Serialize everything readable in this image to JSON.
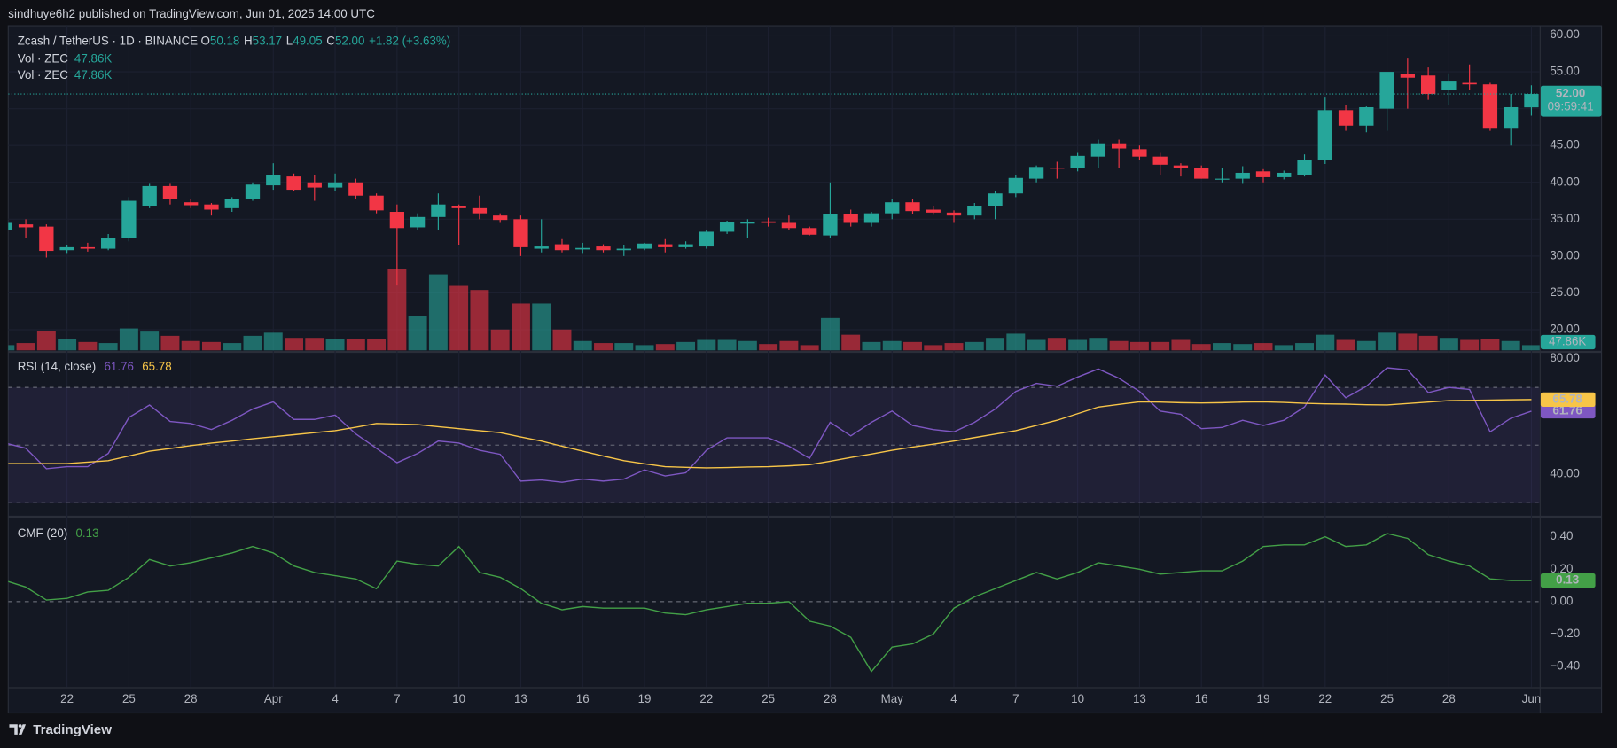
{
  "header": {
    "publisher": "sindhuye6h2 published on TradingView.com, Jun 01, 2025 14:00 UTC"
  },
  "footer": {
    "brand": "TradingView"
  },
  "chart_data": [
    {
      "type": "candlestick",
      "title": "Zcash / TetherUS · 1D · BINANCE",
      "ohlc_labels": [
        "O",
        "H",
        "L",
        "C"
      ],
      "change": "+1.82 (+3.63%)",
      "up_color": "#26a69a",
      "down_color": "#f23645",
      "grid": true,
      "categories": [
        null,
        null,
        null,
        "22",
        null,
        null,
        "25",
        null,
        null,
        "28",
        null,
        null,
        null,
        "Apr",
        null,
        null,
        "4",
        null,
        null,
        "7",
        null,
        null,
        "10",
        null,
        null,
        "13",
        null,
        null,
        "16",
        null,
        null,
        "19",
        null,
        null,
        "22",
        null,
        null,
        "25",
        null,
        null,
        "28",
        null,
        null,
        "May",
        null,
        null,
        "4",
        null,
        null,
        "7",
        null,
        null,
        "10",
        null,
        null,
        "13",
        null,
        null,
        "16",
        null,
        null,
        "19",
        null,
        null,
        "22",
        null,
        null,
        "25",
        null,
        null,
        "28",
        null,
        null,
        null,
        "Jun"
      ],
      "open": [
        33.5,
        34.3,
        34,
        30.8,
        31.2,
        31,
        32.5,
        36.8,
        39.5,
        37.3,
        37,
        36.5,
        37.7,
        39.6,
        40.8,
        40,
        39.3,
        40,
        38.2,
        36,
        33.9,
        35.3,
        36.8,
        36.5,
        35.5,
        35,
        31,
        31.6,
        30.9,
        31.3,
        30.8,
        31,
        31.6,
        31.2,
        31.3,
        33.3,
        34.4,
        34.7,
        34.5,
        33.8,
        32.8,
        35.7,
        34.5,
        35.8,
        37.3,
        36.3,
        35.9,
        35.5,
        36.8,
        38.5,
        40.5,
        42,
        42,
        43.5,
        45.3,
        44.5,
        43.5,
        42.3,
        42,
        40.5,
        40.5,
        41.5,
        40.7,
        41,
        43,
        49.8,
        47.7,
        50,
        54.7,
        54.5,
        52.5,
        53.5,
        53.3,
        47.4,
        50.18
      ],
      "high": [
        35,
        35,
        34.3,
        31.5,
        31.8,
        33,
        38,
        39.8,
        39.8,
        37.8,
        37.2,
        38,
        40,
        42.6,
        41.2,
        41,
        41.2,
        40.5,
        38.5,
        37,
        35.8,
        38.5,
        37,
        38.2,
        35.8,
        35.5,
        35,
        32.3,
        31.8,
        31.6,
        31.5,
        31.8,
        32.3,
        32,
        33.5,
        34.8,
        35,
        35.2,
        35.5,
        34,
        40,
        36.3,
        36,
        37.8,
        37.8,
        36.8,
        36.2,
        37.2,
        38.8,
        41,
        42.3,
        42.8,
        44,
        45.8,
        45.8,
        45,
        44,
        42.6,
        42.3,
        42,
        42.2,
        41.8,
        41.6,
        43.8,
        51.5,
        50.5,
        50.3,
        55,
        56.8,
        55.6,
        54.8,
        56,
        53.5,
        52,
        53.17
      ],
      "low": [
        33,
        32.5,
        29.8,
        30.3,
        30.6,
        30.8,
        32,
        36.5,
        37,
        36.5,
        35.5,
        36,
        37.5,
        39,
        38.8,
        37.5,
        38.8,
        37.8,
        35.8,
        26,
        33.5,
        33.5,
        31.5,
        35,
        34.5,
        30,
        30.5,
        30.5,
        30.3,
        30.5,
        30,
        30.8,
        30.5,
        31,
        31,
        33,
        32.5,
        34,
        33.5,
        32.8,
        32.5,
        34,
        34,
        35,
        35.7,
        35.6,
        34.5,
        35,
        35,
        38,
        40,
        40.5,
        41.5,
        42,
        42,
        43,
        41,
        40.8,
        40.5,
        40,
        39.8,
        40,
        40.4,
        40.8,
        42.5,
        47,
        46.8,
        47,
        50,
        51.2,
        50.5,
        52.5,
        47,
        45,
        49.05
      ],
      "close": [
        34.5,
        33.9,
        30.7,
        31.2,
        31,
        32.5,
        37.5,
        39.5,
        37.8,
        36.9,
        36.3,
        37.7,
        39.7,
        41,
        39,
        39.3,
        40,
        38.2,
        36.2,
        33.8,
        35.3,
        37,
        36.5,
        35.8,
        34.9,
        31.2,
        31.3,
        30.8,
        31.1,
        30.8,
        31,
        31.7,
        31.2,
        31.6,
        33.3,
        34.6,
        34.6,
        34.5,
        33.8,
        32.9,
        35.7,
        34.5,
        35.8,
        37.3,
        36.1,
        35.9,
        35.5,
        36.8,
        38.5,
        40.6,
        42.1,
        41.9,
        43.6,
        45.3,
        44.6,
        43.5,
        42.4,
        42,
        40.5,
        40.5,
        41.3,
        40.7,
        41.3,
        43.1,
        49.8,
        47.7,
        50.2,
        55,
        54.2,
        52,
        53.8,
        53.3,
        47.4,
        50.2,
        52
      ],
      "last_close": {
        "value": 52,
        "label": "52.00"
      },
      "countdown": "09:59:41",
      "volume": {
        "name": "Vol · ZEC",
        "values": [
          48,
          67,
          182,
          106,
          77,
          67,
          202,
          173,
          134,
          86,
          77,
          67,
          134,
          163,
          115,
          115,
          106,
          106,
          106,
          749,
          317,
          701,
          595,
          557,
          192,
          432,
          432,
          192,
          86,
          67,
          67,
          48,
          58,
          77,
          96,
          96,
          86,
          58,
          86,
          48,
          298,
          144,
          77,
          86,
          77,
          48,
          67,
          77,
          115,
          154,
          96,
          115,
          96,
          115,
          86,
          77,
          77,
          96,
          58,
          67,
          58,
          67,
          48,
          67,
          144,
          96,
          86,
          163,
          154,
          134,
          115,
          96,
          106,
          86,
          47.86
        ],
        "last": {
          "value": 47.86,
          "label": "47.86K"
        }
      },
      "ylim": [
        17.2,
        61.26
      ],
      "yticks": [
        {
          "value": 20,
          "label": "20.00"
        },
        {
          "value": 25,
          "label": "25.00"
        },
        {
          "value": 30,
          "label": "30.00"
        },
        {
          "value": 35,
          "label": "35.00"
        },
        {
          "value": 40,
          "label": "40.00"
        },
        {
          "value": 45,
          "label": "45.00"
        },
        {
          "value": 50,
          "label": "50.00"
        },
        {
          "value": 55,
          "label": "55.00"
        },
        {
          "value": 60,
          "label": "60.00"
        }
      ]
    },
    {
      "type": "line",
      "title": "RSI (14, close)",
      "grid": false,
      "series": [
        {
          "color": "#7e57c2",
          "values": [
            50.7,
            48.9,
            41.8,
            42.5,
            42.5,
            47.1,
            59.6,
            63.9,
            58.2,
            57.5,
            55.4,
            58.6,
            62.5,
            65.0,
            58.9,
            58.9,
            60.4,
            53.9,
            48.9,
            43.9,
            47.1,
            51.4,
            50.7,
            48.2,
            46.8,
            37.5,
            37.9,
            37.1,
            38.2,
            37.5,
            38.2,
            41.4,
            39.3,
            40.4,
            48.2,
            52.5,
            52.5,
            52.5,
            49.6,
            45.4,
            57.9,
            53.2,
            57.9,
            61.8,
            56.8,
            55.4,
            54.6,
            57.9,
            62.5,
            68.6,
            71.4,
            70.4,
            73.6,
            76.4,
            73.2,
            68.6,
            61.8,
            60.7,
            55.7,
            56.1,
            58.6,
            56.8,
            58.6,
            63.2,
            74.3,
            66.4,
            70.4,
            76.8,
            76.1,
            68.2,
            70.0,
            69.3,
            54.6,
            59.3,
            61.76
          ]
        },
        {
          "color": "#f7c548",
          "values": [
            43.6,
            43.6,
            43.6,
            43.6,
            44.1,
            44.6,
            46.2,
            47.9,
            48.8,
            49.8,
            50.7,
            51.4,
            52.2,
            52.9,
            53.6,
            54.3,
            55.0,
            56.2,
            57.5,
            57.3,
            57.1,
            56.4,
            55.7,
            55.0,
            54.3,
            52.8,
            51.4,
            49.6,
            47.9,
            46.2,
            44.6,
            43.5,
            42.5,
            42.3,
            42.1,
            42.2,
            42.4,
            42.5,
            42.8,
            43.2,
            44.4,
            45.7,
            46.9,
            48.2,
            49.3,
            50.3,
            51.4,
            52.6,
            53.8,
            55.0,
            56.8,
            58.6,
            60.9,
            63.2,
            64.1,
            65.0,
            64.9,
            64.7,
            64.6,
            64.7,
            64.9,
            65.0,
            64.8,
            64.5,
            64.3,
            64.2,
            64.0,
            63.9,
            64.4,
            64.9,
            65.4,
            65.5,
            65.6,
            65.7,
            65.78
          ]
        }
      ],
      "levels": [
        70,
        50,
        30
      ],
      "band_color": "#7e57c2",
      "ylim": [
        25.7,
        81.8
      ],
      "yticks": [
        {
          "value": 40,
          "label": "40.00"
        },
        {
          "value": 80,
          "label": "80.00"
        }
      ]
    },
    {
      "type": "line",
      "title": "CMF (20)",
      "grid": false,
      "series": [
        {
          "color": "#43a047",
          "values": [
            0.13,
            0.09,
            0.01,
            0.02,
            0.06,
            0.07,
            0.15,
            0.26,
            0.22,
            0.24,
            0.27,
            0.3,
            0.34,
            0.3,
            0.22,
            0.18,
            0.16,
            0.14,
            0.08,
            0.25,
            0.23,
            0.22,
            0.34,
            0.18,
            0.15,
            0.08,
            -0.01,
            -0.05,
            -0.03,
            -0.04,
            -0.04,
            -0.04,
            -0.07,
            -0.08,
            -0.05,
            -0.03,
            -0.01,
            -0.01,
            0.0,
            -0.12,
            -0.15,
            -0.22,
            -0.43,
            -0.28,
            -0.26,
            -0.2,
            -0.04,
            0.03,
            0.08,
            0.13,
            0.18,
            0.14,
            0.18,
            0.24,
            0.22,
            0.2,
            0.17,
            0.18,
            0.19,
            0.19,
            0.25,
            0.34,
            0.35,
            0.35,
            0.4,
            0.34,
            0.35,
            0.42,
            0.39,
            0.29,
            0.25,
            0.22,
            0.14,
            0.13,
            0.13
          ]
        }
      ],
      "levels": [
        0
      ],
      "ylim": [
        -0.527,
        0.514
      ],
      "yticks": [
        {
          "value": -0.4,
          "label": "−0.40"
        },
        {
          "value": -0.2,
          "label": "−0.20"
        },
        {
          "value": 0,
          "label": "0.00"
        },
        {
          "value": 0.2,
          "label": "0.20"
        },
        {
          "value": 0.4,
          "label": "0.40"
        }
      ]
    }
  ]
}
